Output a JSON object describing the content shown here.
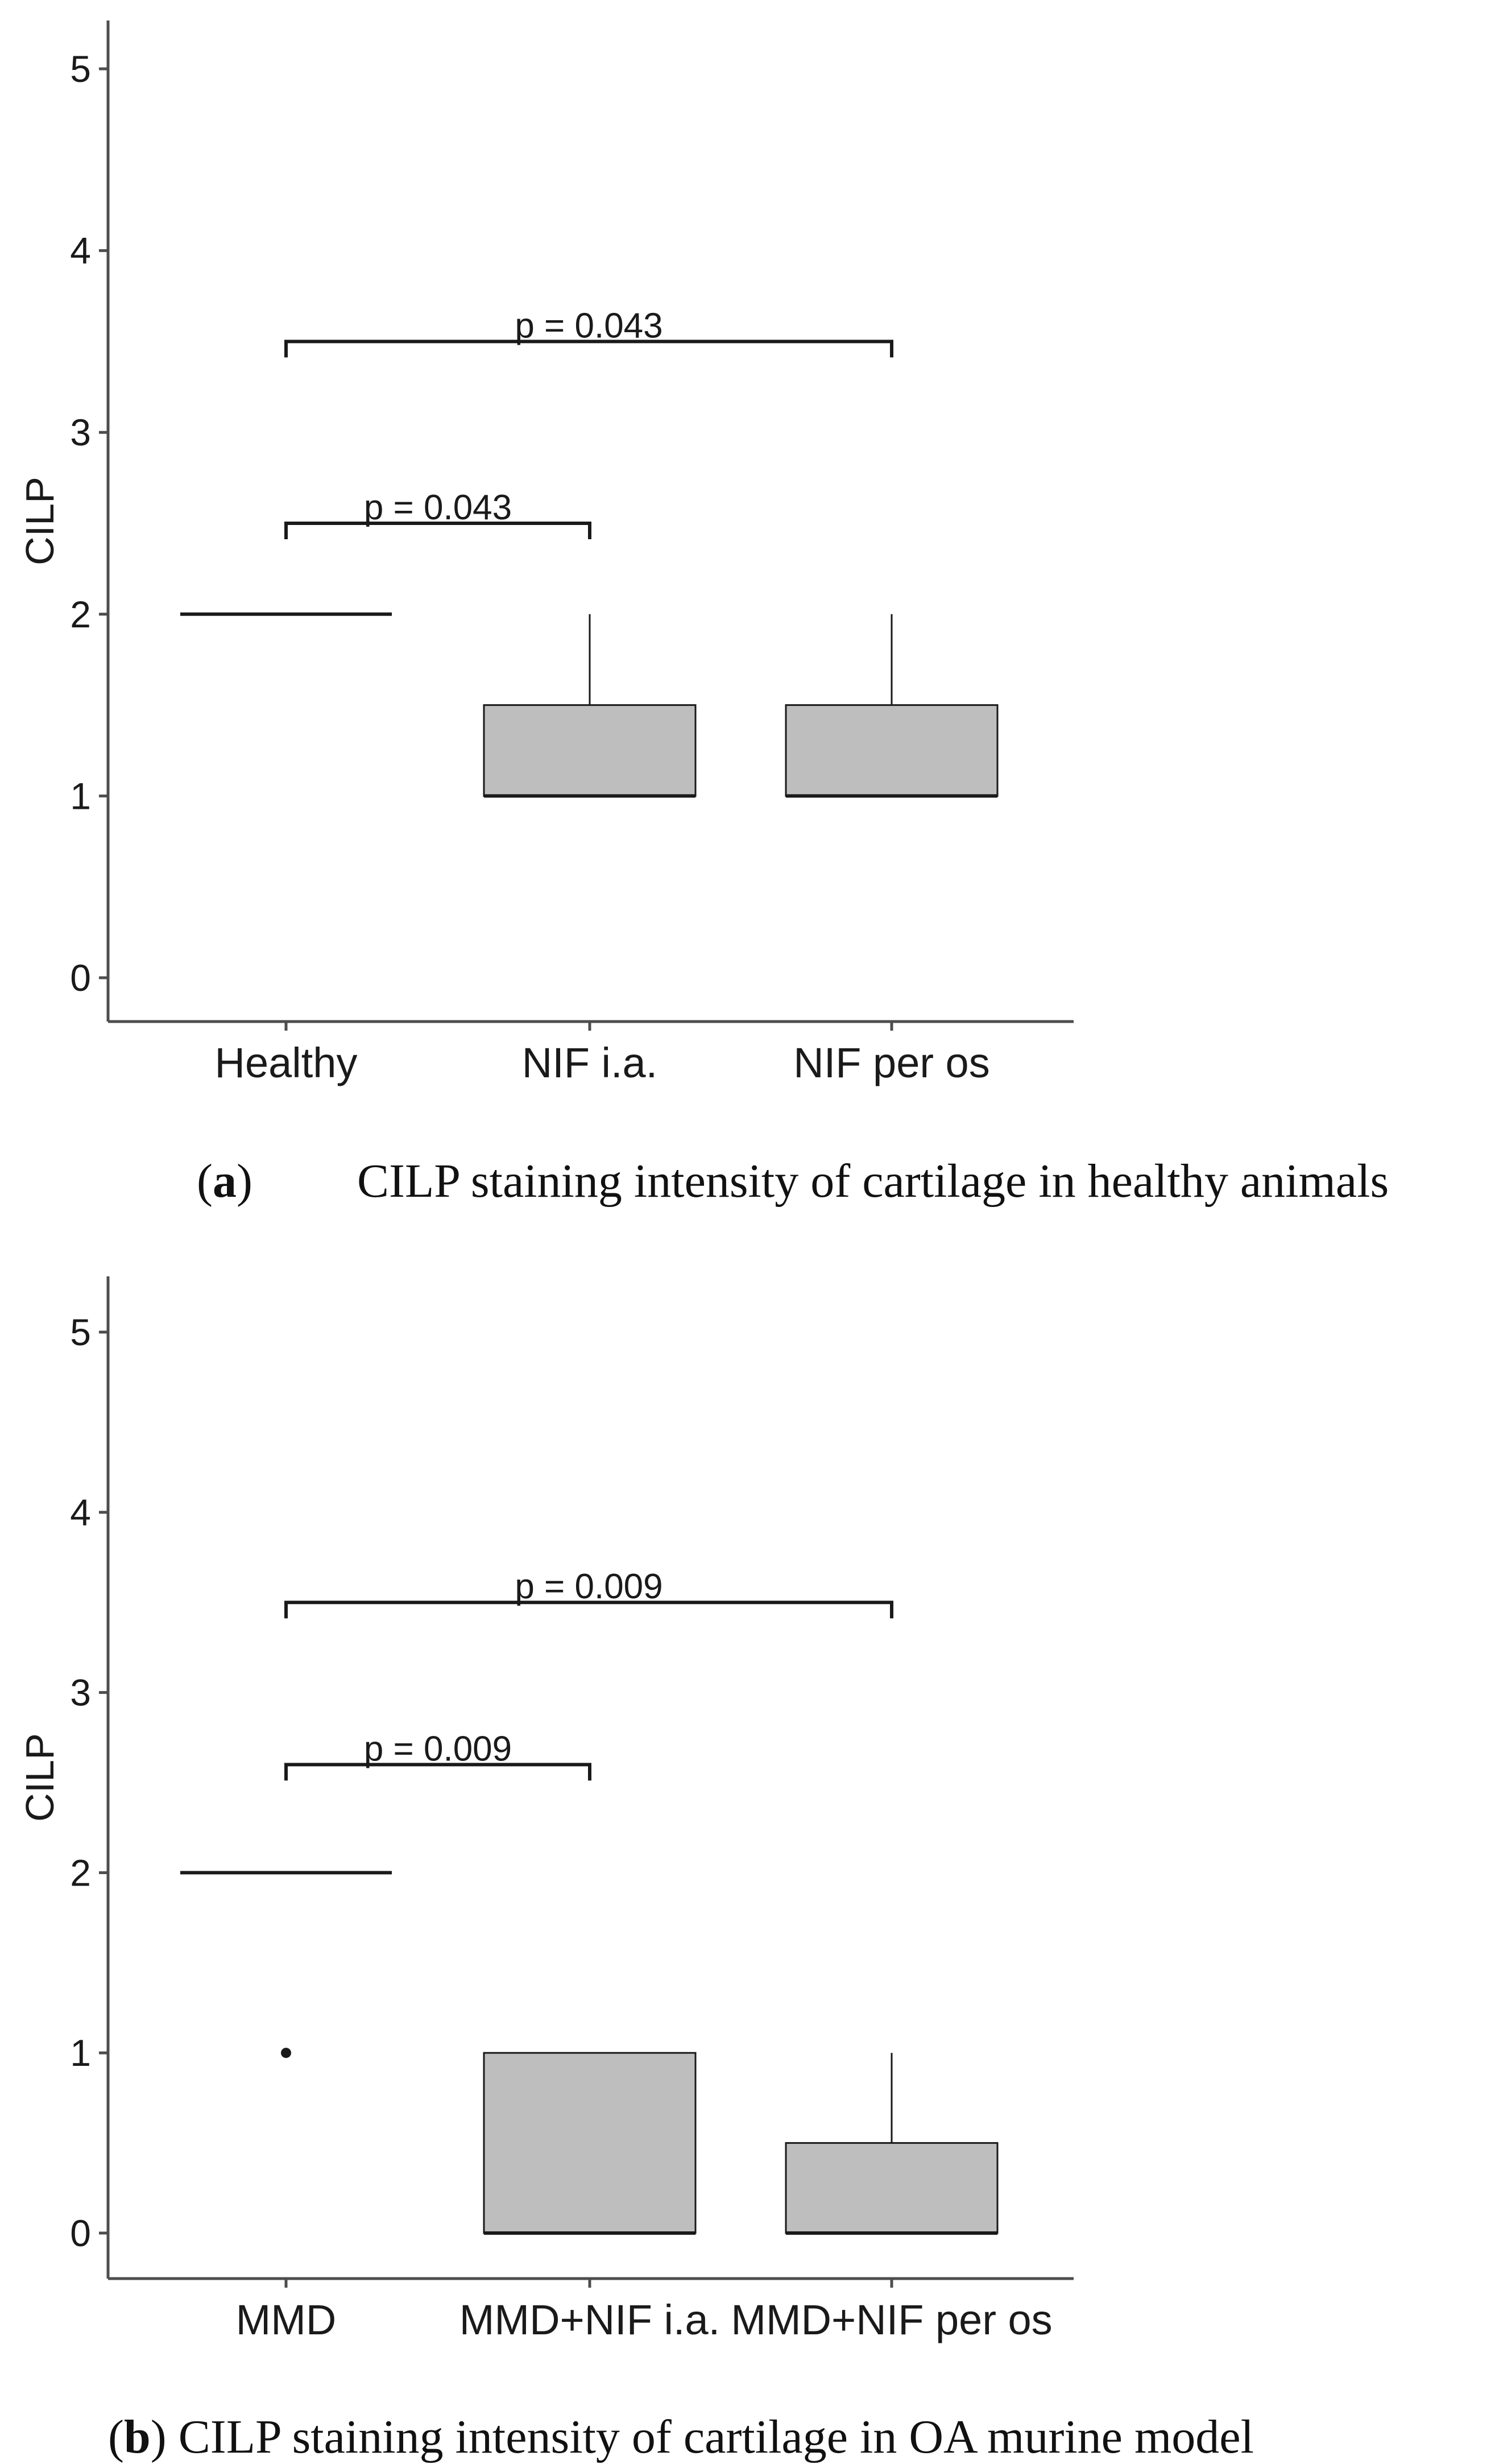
{
  "chart_data": [
    {
      "panel": "a",
      "type": "box",
      "ylabel": "CILP",
      "ylim": [
        0,
        5
      ],
      "yticks": [
        "0",
        "1",
        "2",
        "3",
        "4",
        "5"
      ],
      "categories": [
        "Healthy",
        "NIF i.a.",
        "NIF per os"
      ],
      "boxes": [
        {
          "category": "Healthy",
          "q1": 2,
          "median": 2,
          "q3": 2,
          "whisker_low": 2,
          "whisker_high": 2,
          "outliers": []
        },
        {
          "category": "NIF i.a.",
          "q1": 1,
          "median": 1,
          "q3": 1.5,
          "whisker_low": 1,
          "whisker_high": 2,
          "outliers": []
        },
        {
          "category": "NIF per os",
          "q1": 1,
          "median": 1,
          "q3": 1.5,
          "whisker_low": 1,
          "whisker_high": 2,
          "outliers": []
        }
      ],
      "brackets": [
        {
          "from": 0,
          "to": 1,
          "y": 2.5,
          "label": "p = 0.043"
        },
        {
          "from": 0,
          "to": 2,
          "y": 3.5,
          "label": "p = 0.043"
        }
      ],
      "caption_label": "a",
      "caption_text": "CILP staining intensity of cartilage in healthy animals"
    },
    {
      "panel": "b",
      "type": "box",
      "ylabel": "CILP",
      "ylim": [
        0,
        5
      ],
      "yticks": [
        "0",
        "1",
        "2",
        "3",
        "4",
        "5"
      ],
      "categories": [
        "MMD",
        "MMD+NIF i.a.",
        "MMD+NIF per os"
      ],
      "boxes": [
        {
          "category": "MMD",
          "q1": 2,
          "median": 2,
          "q3": 2,
          "whisker_low": 2,
          "whisker_high": 2,
          "outliers": [
            1
          ]
        },
        {
          "category": "MMD+NIF i.a.",
          "q1": 0,
          "median": 0,
          "q3": 1,
          "whisker_low": 0,
          "whisker_high": 1,
          "outliers": []
        },
        {
          "category": "MMD+NIF per os",
          "q1": 0,
          "median": 0,
          "q3": 0.5,
          "whisker_low": 0,
          "whisker_high": 1,
          "outliers": []
        }
      ],
      "brackets": [
        {
          "from": 0,
          "to": 1,
          "y": 2.6,
          "label": "p = 0.009"
        },
        {
          "from": 0,
          "to": 2,
          "y": 3.5,
          "label": "p = 0.009"
        }
      ],
      "caption_label": "b",
      "caption_text": "CILP staining intensity of cartilage in OA murine model"
    }
  ],
  "colors": {
    "box_fill": "#bebebe",
    "line": "#1a1a1a",
    "axis": "#4d4d4d"
  }
}
